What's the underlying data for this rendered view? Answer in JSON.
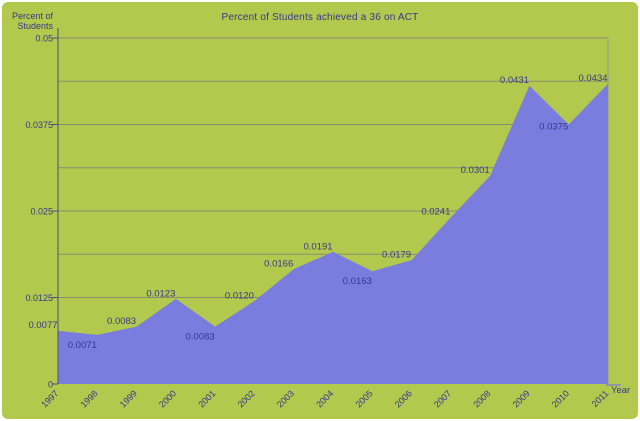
{
  "chart_data": {
    "type": "area",
    "title": "Percent of Students achieved a 36 on ACT",
    "xlabel": "Year",
    "ylabel": "Percent of Students",
    "ylabel_lines": [
      "Percent of",
      "Students"
    ],
    "categories": [
      "1997",
      "1998",
      "1999",
      "2000",
      "2001",
      "2002",
      "2003",
      "2004",
      "2005",
      "2006",
      "2007",
      "2008",
      "2009",
      "2010",
      "2011"
    ],
    "values": [
      0.0077,
      0.0071,
      0.0083,
      0.0123,
      0.0083,
      0.012,
      0.0166,
      0.0191,
      0.0163,
      0.0179,
      0.0241,
      0.0301,
      0.0431,
      0.0375,
      0.0434
    ],
    "point_labels": [
      "0.0077",
      "0.0071",
      "0.0083",
      "0.0123",
      "0.0083",
      "0.0120",
      "0.0166",
      "0.0191",
      "0.0163",
      "0.0179",
      "0.0241",
      "0.0301",
      "0.0431",
      "0.0375",
      "0.0434"
    ],
    "point_label_pos": [
      "above",
      "below",
      "above",
      "above",
      "below",
      "above",
      "above",
      "above",
      "below",
      "above",
      "above",
      "above",
      "above",
      "side",
      "above"
    ],
    "ylim": [
      0,
      0.05
    ],
    "y_ticks": [
      {
        "value": 0.05,
        "label": "0.05"
      },
      {
        "value": 0.0375,
        "label": "0.0375"
      },
      {
        "value": 0.025,
        "label": "0.025"
      },
      {
        "value": 0.0125,
        "label": "0.0125"
      },
      {
        "value": 0,
        "label": "0"
      }
    ],
    "minor_gridlines": [
      0.04375,
      0.03125,
      0.01875,
      0.00625
    ],
    "grid": true,
    "legend": false,
    "colors": {
      "background": "#b2c94e",
      "area": "#7a7dde",
      "gridline": "#8c8c73",
      "plot_border": "#9a9a85",
      "axis": "#4f4f66",
      "text": "#38388a",
      "page": "#ffffff"
    }
  }
}
